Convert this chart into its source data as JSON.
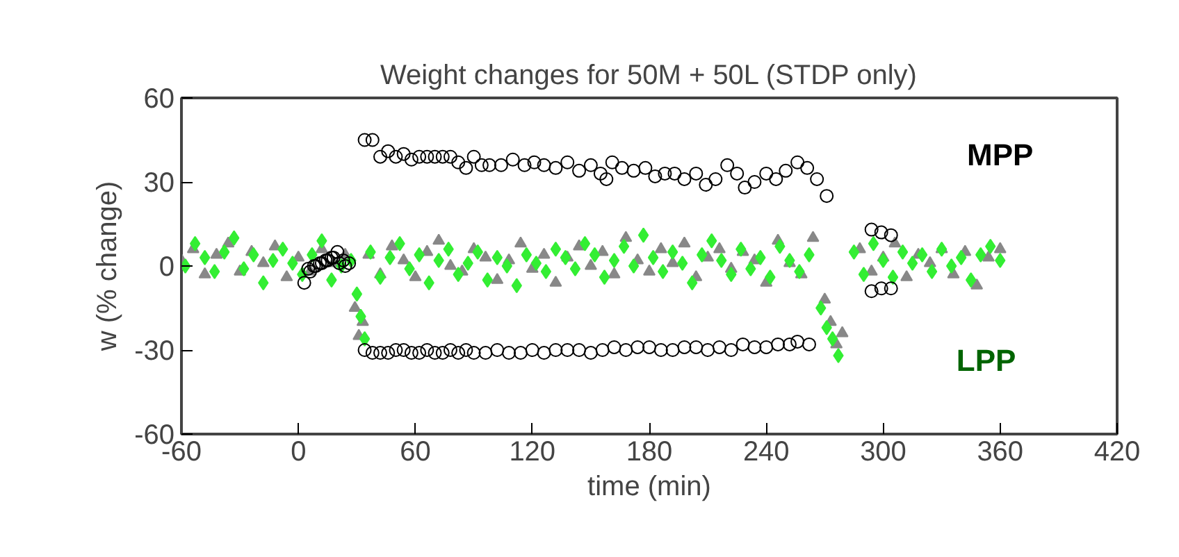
{
  "chart_data": {
    "type": "scatter",
    "title": "Weight changes for 50M + 50L (STDP only)",
    "xlabel": "time (min)",
    "ylabel": "w (% change)",
    "xlim": [
      -60,
      420
    ],
    "xticks": [
      -60,
      0,
      60,
      120,
      180,
      240,
      300,
      360,
      420
    ],
    "ylim": [
      -60,
      60
    ],
    "yticks": [
      -60,
      -30,
      0,
      30,
      60
    ],
    "grid": false,
    "series": [
      {
        "color": "#888888",
        "marker": "triangle",
        "x": [
          -60,
          -54,
          -48,
          -42,
          -36,
          -30,
          -24,
          -18,
          -12,
          -6,
          0,
          6,
          12,
          18,
          24,
          29,
          31,
          33,
          36,
          42,
          48,
          54,
          60,
          66,
          72,
          78,
          84,
          90,
          96,
          102,
          108,
          114,
          120,
          126,
          132,
          138,
          144,
          150,
          156,
          162,
          168,
          174,
          180,
          186,
          192,
          198,
          204,
          210,
          216,
          222,
          228,
          234,
          240,
          246,
          252,
          258,
          264,
          270,
          273,
          276,
          279,
          288,
          294,
          300,
          306,
          312,
          318,
          324,
          330,
          336,
          342,
          348,
          354,
          360
        ],
        "values": [
          2,
          6,
          -3,
          4,
          8,
          -2,
          5,
          1,
          7,
          -4,
          3,
          -2,
          6,
          1,
          4,
          -15,
          -25,
          -20,
          4,
          -3,
          7,
          2,
          -4,
          5,
          9,
          0,
          -2,
          6,
          3,
          -5,
          2,
          8,
          -1,
          4,
          -6,
          3,
          7,
          0,
          5,
          -3,
          10,
          2,
          -2,
          6,
          1,
          8,
          -4,
          3,
          6,
          -1,
          5,
          2,
          -6,
          9,
          1,
          -3,
          10,
          -12,
          -20,
          -28,
          -24,
          6,
          -2,
          3,
          8,
          -4,
          4,
          1,
          6,
          -3,
          5,
          -7,
          3,
          6
        ]
      },
      {
        "color": "#33ee33",
        "marker": "diamond",
        "x": [
          -58,
          -53,
          -48,
          -43,
          -38,
          -33,
          -28,
          -23,
          -18,
          -13,
          -8,
          -3,
          2,
          7,
          12,
          17,
          22,
          27,
          30,
          32,
          34,
          37,
          42,
          47,
          52,
          57,
          62,
          67,
          72,
          77,
          82,
          87,
          92,
          97,
          102,
          107,
          112,
          117,
          122,
          127,
          132,
          137,
          142,
          147,
          152,
          157,
          162,
          167,
          172,
          177,
          182,
          187,
          192,
          197,
          202,
          207,
          212,
          217,
          222,
          227,
          232,
          237,
          242,
          247,
          252,
          257,
          262,
          268,
          271,
          274,
          277,
          285,
          290,
          295,
          300,
          305,
          310,
          315,
          320,
          325,
          330,
          335,
          340,
          345,
          350,
          355,
          360
        ],
        "values": [
          0,
          8,
          3,
          -2,
          5,
          10,
          -1,
          4,
          -6,
          2,
          6,
          1,
          -3,
          4,
          9,
          -5,
          0,
          2,
          -10,
          -18,
          -26,
          5,
          -4,
          3,
          8,
          -1,
          4,
          -6,
          2,
          6,
          -3,
          1,
          5,
          -5,
          3,
          0,
          -7,
          4,
          1,
          -2,
          6,
          3,
          -1,
          8,
          4,
          -4,
          2,
          7,
          0,
          11,
          3,
          -2,
          5,
          1,
          -6,
          4,
          9,
          2,
          -3,
          6,
          -1,
          3,
          -4,
          7,
          2,
          -2,
          4,
          -15,
          -22,
          -26,
          -32,
          5,
          -3,
          8,
          2,
          -4,
          5,
          1,
          4,
          -2,
          6,
          0,
          3,
          -5,
          4,
          7,
          2
        ]
      },
      {
        "color": "#000000",
        "marker": "circle",
        "x": [
          3,
          5,
          8,
          11,
          14,
          17,
          20,
          23,
          26,
          34,
          38,
          42,
          46,
          50,
          54,
          58,
          62,
          66,
          70,
          74,
          78,
          82,
          86,
          90,
          94,
          98,
          104,
          110,
          116,
          121,
          126,
          132,
          138,
          144,
          150,
          155,
          158,
          161,
          166,
          172,
          178,
          183,
          188,
          193,
          198,
          204,
          209,
          214,
          220,
          225,
          229,
          234,
          240,
          245,
          250,
          256,
          261,
          266,
          271,
          294,
          299,
          304
        ],
        "values": [
          -6,
          -1,
          0,
          1,
          2,
          3,
          5,
          2,
          1,
          45,
          45,
          39,
          41,
          39,
          40,
          38,
          39,
          39,
          39,
          39,
          39,
          37,
          35,
          39,
          36,
          36,
          36,
          38,
          36,
          37,
          36,
          35,
          37,
          34,
          36,
          33,
          31,
          37,
          35,
          34,
          35,
          32,
          33,
          33,
          31,
          33,
          29,
          31,
          36,
          33,
          28,
          30,
          33,
          31,
          34,
          37,
          35,
          31,
          25,
          13,
          12,
          11
        ]
      },
      {
        "color": "#000000",
        "marker": "circle",
        "x": [
          6,
          9,
          12,
          15,
          18,
          21,
          24,
          34,
          38,
          42,
          46,
          50,
          54,
          58,
          62,
          66,
          70,
          74,
          78,
          82,
          86,
          90,
          96,
          102,
          108,
          114,
          120,
          126,
          132,
          138,
          144,
          150,
          156,
          162,
          168,
          174,
          180,
          186,
          192,
          198,
          204,
          210,
          216,
          222,
          228,
          234,
          240,
          246,
          252,
          256,
          262,
          294,
          299,
          304
        ],
        "values": [
          -2,
          0,
          1,
          2,
          3,
          1,
          0,
          -30,
          -31,
          -31,
          -31,
          -30,
          -30,
          -31,
          -31,
          -30,
          -31,
          -31,
          -30,
          -31,
          -30,
          -31,
          -31,
          -30,
          -31,
          -31,
          -30,
          -31,
          -30,
          -30,
          -30,
          -31,
          -30,
          -29,
          -30,
          -29,
          -29,
          -30,
          -30,
          -29,
          -29,
          -30,
          -29,
          -30,
          -28,
          -29,
          -29,
          -28,
          -28,
          -27,
          -28,
          -9,
          -8,
          -8
        ]
      }
    ],
    "annotations": [
      "MPP",
      "LPP"
    ]
  }
}
